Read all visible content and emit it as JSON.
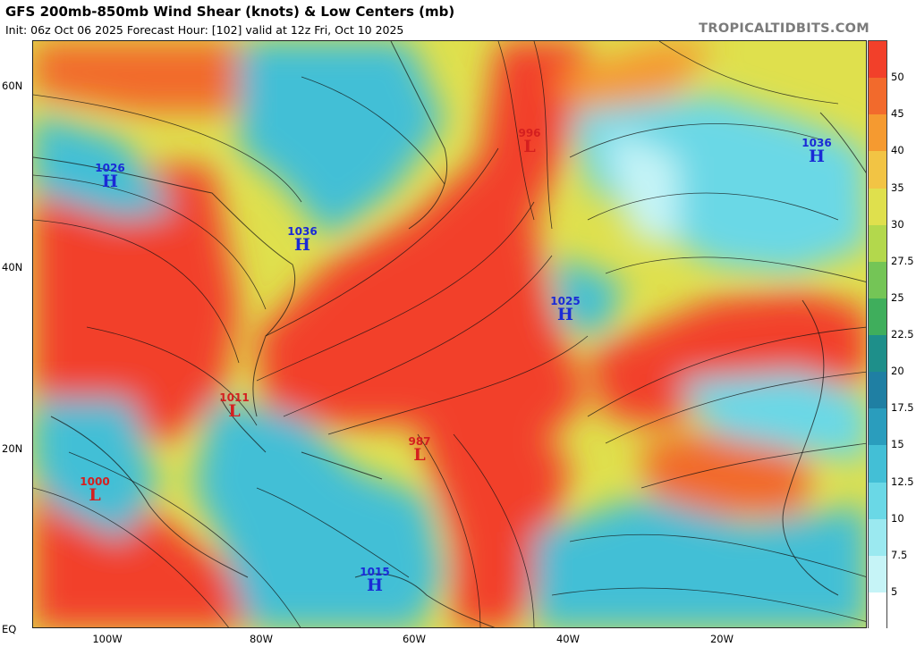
{
  "header": {
    "title": "GFS 200mb-850mb Wind Shear (knots) & Low Centers (mb)",
    "subtitle": "Init: 06z Oct 06 2025   Forecast Hour: [102]   valid at 12z Fri, Oct 10 2025",
    "credit": "TROPICALTIDBITS.COM"
  },
  "axes": {
    "lat_labels": [
      "60N",
      "40N",
      "20N",
      "EQ"
    ],
    "lon_labels": [
      "100W",
      "80W",
      "60W",
      "40W",
      "20W"
    ]
  },
  "colorbar": {
    "labels": [
      "50",
      "45",
      "40",
      "35",
      "30",
      "27.5",
      "25",
      "22.5",
      "20",
      "17.5",
      "15",
      "12.5",
      "10",
      "7.5",
      "5"
    ],
    "colors": [
      "#f2402a",
      "#f26a2c",
      "#f59a30",
      "#f2c444",
      "#dfe04d",
      "#b3d84c",
      "#74c556",
      "#3fae5c",
      "#1e8f8a",
      "#1f7fa3",
      "#2a9dbd",
      "#43bfd6",
      "#6ad8e6",
      "#9be9f0",
      "#c6f4f7",
      "#ffffff"
    ]
  },
  "pressure_centers": [
    {
      "type": "H",
      "value": "1026"
    },
    {
      "type": "H",
      "value": "1036"
    },
    {
      "type": "H",
      "value": "1025"
    },
    {
      "type": "H",
      "value": "1036"
    },
    {
      "type": "H",
      "value": "1015"
    },
    {
      "type": "L",
      "value": "996"
    },
    {
      "type": "L",
      "value": "1011"
    },
    {
      "type": "L",
      "value": "987"
    },
    {
      "type": "L",
      "value": "1000"
    }
  ]
}
